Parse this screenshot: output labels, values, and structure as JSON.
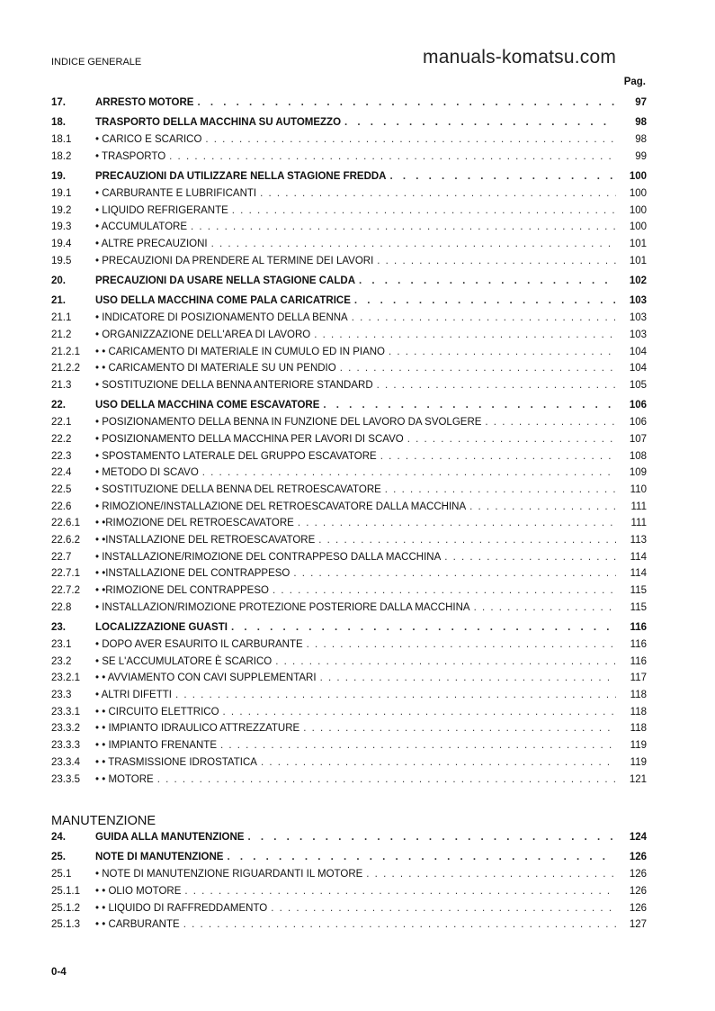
{
  "header": "INDICE GENERALE",
  "page_label": "Pag.",
  "watermark": "manuals-komatsu.com",
  "footer": "0-4",
  "groups": [
    {
      "rows": [
        {
          "num": "17.",
          "title": "ARRESTO MOTORE",
          "page": "97",
          "main": true
        },
        {
          "num": "18.",
          "title": "TRASPORTO DELLA MACCHINA SU AUTOMEZZO",
          "page": "98",
          "main": true
        },
        {
          "num": "18.1",
          "title": "• CARICO E SCARICO",
          "page": "98"
        },
        {
          "num": "18.2",
          "title": "• TRASPORTO",
          "page": "99"
        },
        {
          "num": "19.",
          "title": "PRECAUZIONI DA UTILIZZARE NELLA STAGIONE FREDDA",
          "page": "100",
          "main": true
        },
        {
          "num": "19.1",
          "title": "• CARBURANTE E LUBRIFICANTI",
          "page": "100"
        },
        {
          "num": "19.2",
          "title": "• LIQUIDO REFRIGERANTE",
          "page": "100"
        },
        {
          "num": "19.3",
          "title": "• ACCUMULATORE",
          "page": "100"
        },
        {
          "num": "19.4",
          "title": "• ALTRE PRECAUZIONI",
          "page": "101"
        },
        {
          "num": "19.5",
          "title": "• PRECAUZIONI DA PRENDERE AL TERMINE DEI LAVORI",
          "page": "101"
        },
        {
          "num": "20.",
          "title": "PRECAUZIONI DA USARE NELLA STAGIONE CALDA",
          "page": "102",
          "main": true
        },
        {
          "num": "21.",
          "title": "USO DELLA MACCHINA COME PALA CARICATRICE",
          "page": "103",
          "main": true
        },
        {
          "num": "21.1",
          "title": "• INDICATORE DI POSIZIONAMENTO DELLA BENNA",
          "page": "103"
        },
        {
          "num": "21.2",
          "title": "• ORGANIZZAZIONE DELL'AREA DI LAVORO",
          "page": "103"
        },
        {
          "num": "21.2.1",
          "title": "• • CARICAMENTO DI MATERIALE IN CUMULO ED IN PIANO",
          "page": "104"
        },
        {
          "num": "21.2.2",
          "title": "• • CARICAMENTO DI MATERIALE SU UN PENDIO",
          "page": "104"
        },
        {
          "num": "21.3",
          "title": "• SOSTITUZIONE DELLA BENNA ANTERIORE STANDARD",
          "page": "105"
        },
        {
          "num": "22.",
          "title": "USO DELLA MACCHINA COME ESCAVATORE",
          "page": "106",
          "main": true
        },
        {
          "num": "22.1",
          "title": "• POSIZIONAMENTO DELLA BENNA IN FUNZIONE DEL LAVORO DA SVOLGERE",
          "page": "106"
        },
        {
          "num": "22.2",
          "title": "• POSIZIONAMENTO DELLA MACCHINA PER LAVORI DI SCAVO",
          "page": "107"
        },
        {
          "num": "22.3",
          "title": "• SPOSTAMENTO LATERALE DEL GRUPPO ESCAVATORE",
          "page": "108"
        },
        {
          "num": "22.4",
          "title": "• METODO DI SCAVO",
          "page": "109"
        },
        {
          "num": "22.5",
          "title": "• SOSTITUZIONE DELLA BENNA DEL RETROESCAVATORE",
          "page": "110"
        },
        {
          "num": "22.6",
          "title": "• RIMOZIONE/INSTALLAZIONE DEL RETROESCAVATORE DALLA MACCHINA",
          "page": "111"
        },
        {
          "num": "22.6.1",
          "title": "• •RIMOZIONE DEL RETROESCAVATORE",
          "page": "111"
        },
        {
          "num": "22.6.2",
          "title": "• •INSTALLAZIONE DEL RETROESCAVATORE",
          "page": "113"
        },
        {
          "num": "22.7",
          "title": "• INSTALLAZIONE/RIMOZIONE DEL CONTRAPPESO DALLA MACCHINA",
          "page": "114"
        },
        {
          "num": "22.7.1",
          "title": "• •INSTALLAZIONE DEL CONTRAPPESO",
          "page": "114"
        },
        {
          "num": "22.7.2",
          "title": "• •RIMOZIONE DEL CONTRAPPESO",
          "page": "115"
        },
        {
          "num": "22.8",
          "title": "• INSTALLAZION/RIMOZIONE PROTEZIONE POSTERIORE DALLA MACCHINA",
          "page": "115"
        },
        {
          "num": "23.",
          "title": "LOCALIZZAZIONE GUASTI",
          "page": "116",
          "main": true
        },
        {
          "num": "23.1",
          "title": "• DOPO AVER ESAURITO IL CARBURANTE",
          "page": "116"
        },
        {
          "num": "23.2",
          "title": "• SE L'ACCUMULATORE È SCARICO",
          "page": "116"
        },
        {
          "num": "23.2.1",
          "title": "• • AVVIAMENTO CON CAVI SUPPLEMENTARI",
          "page": "117"
        },
        {
          "num": "23.3",
          "title": "• ALTRI DIFETTI",
          "page": "118"
        },
        {
          "num": "23.3.1",
          "title": "• • CIRCUITO ELETTRICO",
          "page": "118"
        },
        {
          "num": "23.3.2",
          "title": "• • IMPIANTO IDRAULICO ATTREZZATURE",
          "page": "118"
        },
        {
          "num": "23.3.3",
          "title": "• • IMPIANTO FRENANTE",
          "page": "119"
        },
        {
          "num": "23.3.4",
          "title": "• • TRASMISSIONE IDROSTATICA",
          "page": "119"
        },
        {
          "num": "23.3.5",
          "title": "• • MOTORE",
          "page": "121"
        }
      ]
    },
    {
      "section": "MANUTENZIONE",
      "rows": [
        {
          "num": "24.",
          "title": "GUIDA ALLA MANUTENZIONE",
          "page": "124",
          "main": true
        },
        {
          "num": "25.",
          "title": "NOTE DI MANUTENZIONE",
          "page": "126",
          "main": true
        },
        {
          "num": "25.1",
          "title": "• NOTE DI MANUTENZIONE RIGUARDANTI IL MOTORE",
          "page": "126"
        },
        {
          "num": "25.1.1",
          "title": "• • OLIO MOTORE",
          "page": "126"
        },
        {
          "num": "25.1.2",
          "title": "• • LIQUIDO DI RAFFREDDAMENTO",
          "page": "126"
        },
        {
          "num": "25.1.3",
          "title": "• • CARBURANTE",
          "page": "127"
        }
      ]
    }
  ]
}
